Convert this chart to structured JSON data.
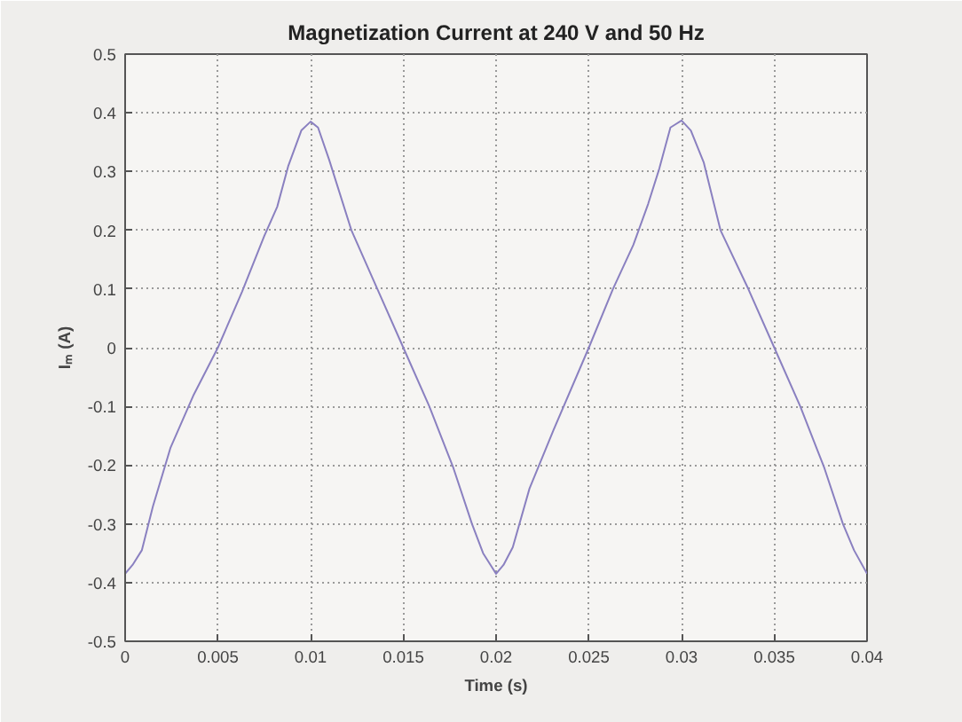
{
  "chart_data": {
    "type": "line",
    "title": "Magnetization Current at 240 V and 50 Hz",
    "xlabel": "Time (s)",
    "ylabel": "Iₘ (A)",
    "xlim": [
      0,
      0.04
    ],
    "xticks": [
      0,
      0.005,
      0.01,
      0.015,
      0.02,
      0.025,
      0.03,
      0.035,
      0.04
    ],
    "ylim": [
      -0.5,
      0.5
    ],
    "yticks": [
      -0.5,
      -0.4,
      -0.3,
      -0.2,
      -0.1,
      0,
      0.1,
      0.2,
      0.3,
      0.4,
      0.5
    ],
    "grid": true,
    "line_style": "solid",
    "series": [
      {
        "color": "#8a80c0",
        "x": [
          0,
          0.0004,
          0.0009,
          0.0015,
          0.00245,
          0.0037,
          0.005,
          0.0063,
          0.0075,
          0.0082,
          0.0088,
          0.0095,
          0.01,
          0.0104,
          0.011,
          0.0122,
          0.0136,
          0.015,
          0.0164,
          0.0177,
          0.0187,
          0.0193,
          0.0198,
          0.02,
          0.0204,
          0.0209,
          0.0218,
          0.0231,
          0.025,
          0.0263,
          0.0274,
          0.0282,
          0.0288,
          0.0294,
          0.03,
          0.0305,
          0.0312,
          0.0321,
          0.0336,
          0.035,
          0.0364,
          0.0377,
          0.0387,
          0.0393,
          0.04
        ],
        "values": [
          -0.385,
          -0.37,
          -0.345,
          -0.27,
          -0.17,
          -0.08,
          0,
          0.095,
          0.19,
          0.24,
          0.31,
          0.37,
          0.385,
          0.375,
          0.32,
          0.2,
          0.1,
          0,
          -0.1,
          -0.205,
          -0.3,
          -0.35,
          -0.375,
          -0.385,
          -0.37,
          -0.34,
          -0.24,
          -0.14,
          0,
          0.1,
          0.175,
          0.245,
          0.305,
          0.375,
          0.387,
          0.37,
          0.315,
          0.2,
          0.1,
          0,
          -0.1,
          -0.205,
          -0.3,
          -0.345,
          -0.385
        ]
      }
    ]
  }
}
